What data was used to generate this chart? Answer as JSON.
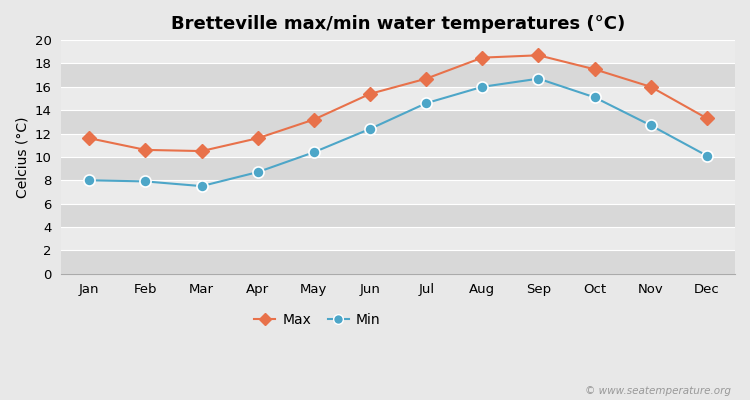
{
  "title": "Bretteville max/min water temperatures (°C)",
  "ylabel": "Celcius (°C)",
  "months": [
    "Jan",
    "Feb",
    "Mar",
    "Apr",
    "May",
    "Jun",
    "Jul",
    "Aug",
    "Sep",
    "Oct",
    "Nov",
    "Dec"
  ],
  "max_values": [
    11.6,
    10.6,
    10.5,
    11.6,
    13.2,
    15.4,
    16.7,
    18.5,
    18.7,
    17.5,
    16.0,
    13.3
  ],
  "min_values": [
    8.0,
    7.9,
    7.5,
    8.7,
    10.4,
    12.4,
    14.6,
    16.0,
    16.7,
    15.1,
    12.7,
    10.1
  ],
  "max_color": "#e8714a",
  "min_color": "#4da6c8",
  "background_color": "#e8e8e8",
  "band_light": "#ebebeb",
  "band_dark": "#d8d8d8",
  "grid_color": "#ffffff",
  "ylim": [
    0,
    20
  ],
  "yticks": [
    0,
    2,
    4,
    6,
    8,
    10,
    12,
    14,
    16,
    18,
    20
  ],
  "legend_labels": [
    "Max",
    "Min"
  ],
  "watermark": "© www.seatemperature.org",
  "title_fontsize": 13,
  "axis_fontsize": 10,
  "tick_fontsize": 9.5,
  "legend_fontsize": 10
}
